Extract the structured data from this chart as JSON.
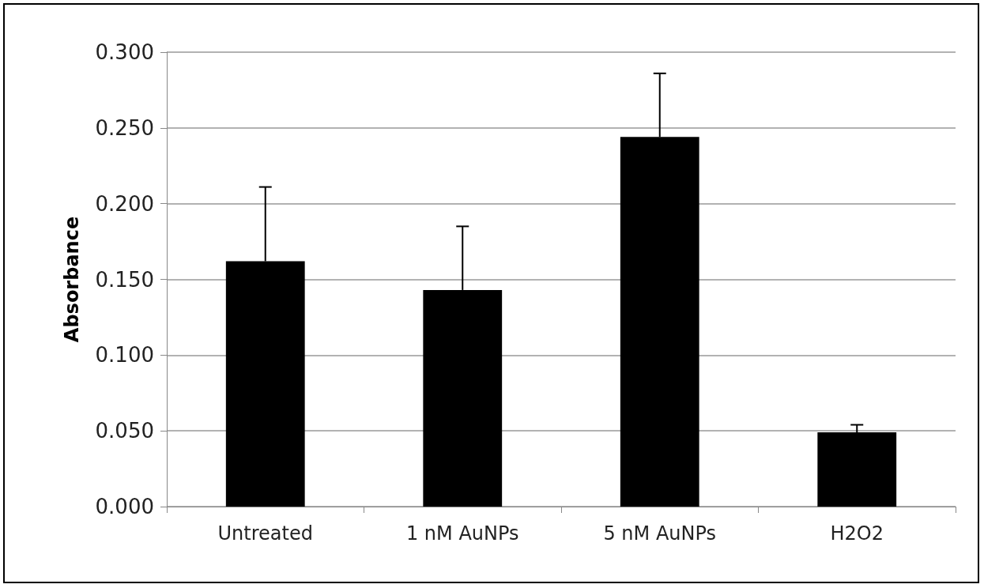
{
  "chart_data": {
    "type": "bar",
    "ylabel": "Absorbance",
    "categories": [
      "Untreated",
      "1 nM AuNPs",
      "5 nM AuNPs",
      "H2O2"
    ],
    "values": [
      0.162,
      0.143,
      0.244,
      0.049
    ],
    "errors": [
      0.049,
      0.042,
      0.042,
      0.005
    ],
    "color": "#000000",
    "ylim": [
      0,
      0.3
    ],
    "yticks": [
      {
        "value": 0,
        "label": "0.000"
      },
      {
        "value": 0.05,
        "label": "0.050"
      },
      {
        "value": 0.1,
        "label": "0.100"
      },
      {
        "value": 0.15,
        "label": "0.150"
      },
      {
        "value": 0.2,
        "label": "0.200"
      },
      {
        "value": 0.25,
        "label": "0.250"
      },
      {
        "value": 0.3,
        "label": "0.300"
      }
    ],
    "grid": "y"
  }
}
